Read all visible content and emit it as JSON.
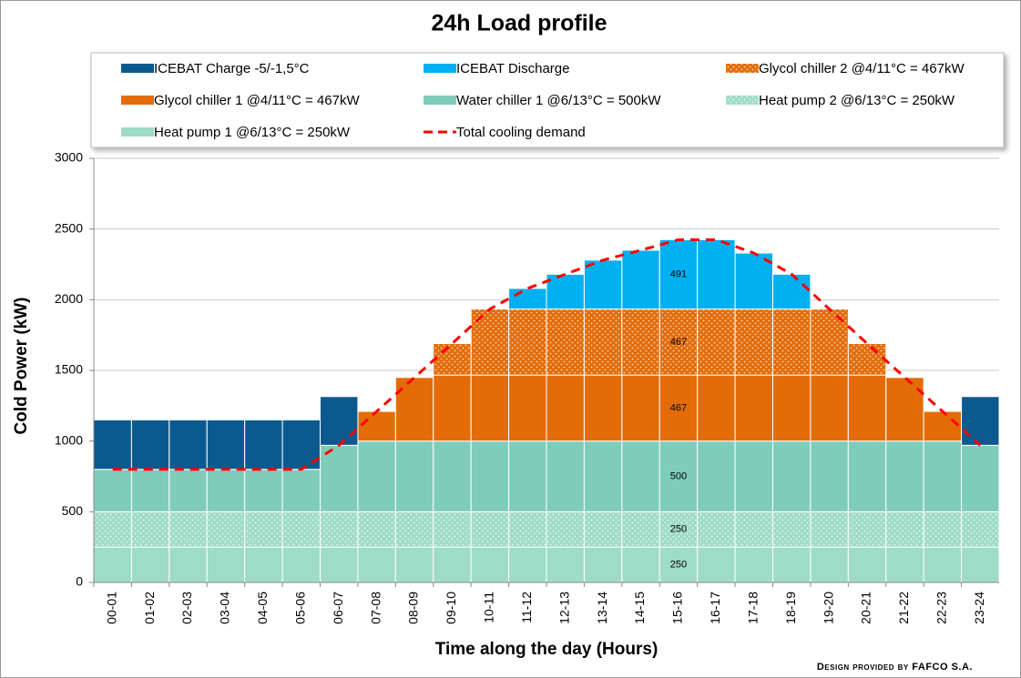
{
  "chart_data": {
    "type": "bar",
    "stacked": true,
    "title": "24h Load profile",
    "x_label": "Time along the day (Hours)",
    "y_label": "Cold Power (kW)",
    "footer": "Design provided by FAFCO S.A.",
    "grid": true,
    "categories": [
      "00-01",
      "01-02",
      "02-03",
      "03-04",
      "04-05",
      "05-06",
      "06-07",
      "07-08",
      "08-09",
      "09-10",
      "10-11",
      "11-12",
      "12-13",
      "13-14",
      "14-15",
      "15-16",
      "16-17",
      "17-18",
      "18-19",
      "19-20",
      "20-21",
      "21-22",
      "22-23",
      "23-24"
    ],
    "ylim": [
      0,
      3000
    ],
    "yticks": [
      0,
      500,
      1000,
      1500,
      2000,
      2500,
      3000
    ],
    "series": [
      {
        "name": "Heat pump 1  @6/13°C = 250kW",
        "color": "#9fdcc8",
        "legend_order": 6,
        "values": [
          250,
          250,
          250,
          250,
          250,
          250,
          250,
          250,
          250,
          250,
          250,
          250,
          250,
          250,
          250,
          250,
          250,
          250,
          250,
          250,
          250,
          250,
          250,
          250
        ],
        "value_labels": [
          null,
          null,
          null,
          null,
          null,
          null,
          null,
          null,
          null,
          null,
          null,
          null,
          null,
          null,
          null,
          "250",
          null,
          null,
          null,
          null,
          null,
          null,
          null,
          null
        ]
      },
      {
        "name": "Heat pump 2  @6/13°C = 250kW",
        "color": "#9fdcc8",
        "pattern": "dots",
        "legend_order": 5,
        "values": [
          250,
          250,
          250,
          250,
          250,
          250,
          250,
          250,
          250,
          250,
          250,
          250,
          250,
          250,
          250,
          250,
          250,
          250,
          250,
          250,
          250,
          250,
          250,
          250
        ],
        "value_labels": [
          null,
          null,
          null,
          null,
          null,
          null,
          null,
          null,
          null,
          null,
          null,
          null,
          null,
          null,
          null,
          "250",
          null,
          null,
          null,
          null,
          null,
          null,
          null,
          null
        ]
      },
      {
        "name": "Water chiller 1  @6/13°C = 500kW",
        "color": "#7fccbb",
        "legend_order": 4,
        "values": [
          300,
          300,
          300,
          300,
          300,
          300,
          470,
          500,
          500,
          500,
          500,
          500,
          500,
          500,
          500,
          500,
          500,
          500,
          500,
          500,
          500,
          500,
          500,
          470
        ],
        "value_labels": [
          null,
          null,
          null,
          null,
          null,
          null,
          null,
          null,
          null,
          null,
          null,
          null,
          null,
          null,
          null,
          "500",
          null,
          null,
          null,
          null,
          null,
          null,
          null,
          null
        ]
      },
      {
        "name": "Glycol chiller 1  @4/11°C = 467kW",
        "color": "#e36c09",
        "legend_order": 3,
        "values": [
          0,
          0,
          0,
          0,
          0,
          0,
          0,
          210,
          450,
          467,
          467,
          467,
          467,
          467,
          467,
          467,
          467,
          467,
          467,
          467,
          467,
          450,
          210,
          0
        ],
        "value_labels": [
          null,
          null,
          null,
          null,
          null,
          null,
          null,
          null,
          null,
          null,
          null,
          null,
          null,
          null,
          null,
          "467",
          null,
          null,
          null,
          null,
          null,
          null,
          null,
          null
        ]
      },
      {
        "name": "Glycol chiller 2  @4/11°C = 467kW",
        "color": "#e36c09",
        "pattern": "dots",
        "legend_order": 2,
        "values": [
          0,
          0,
          0,
          0,
          0,
          0,
          0,
          0,
          0,
          223,
          467,
          467,
          467,
          467,
          467,
          467,
          467,
          467,
          467,
          467,
          223,
          0,
          0,
          0
        ],
        "value_labels": [
          null,
          null,
          null,
          null,
          null,
          null,
          null,
          null,
          null,
          null,
          null,
          null,
          null,
          null,
          null,
          "467",
          null,
          null,
          null,
          null,
          null,
          null,
          null,
          null
        ]
      },
      {
        "name": "ICEBAT Discharge",
        "color": "#00b0f0",
        "legend_order": 1,
        "values": [
          0,
          0,
          0,
          0,
          0,
          0,
          0,
          0,
          0,
          0,
          0,
          146,
          246,
          346,
          416,
          491,
          491,
          396,
          246,
          0,
          0,
          0,
          0,
          0
        ],
        "value_labels": [
          null,
          null,
          null,
          null,
          null,
          null,
          null,
          null,
          null,
          null,
          null,
          null,
          null,
          null,
          null,
          "491",
          null,
          null,
          null,
          null,
          null,
          null,
          null,
          null
        ]
      },
      {
        "name": "ICEBAT Charge -5/-1,5°C",
        "color": "#0b5a8f",
        "legend_order": 0,
        "values": [
          350,
          350,
          350,
          350,
          350,
          350,
          345,
          0,
          0,
          0,
          0,
          0,
          0,
          0,
          0,
          0,
          0,
          0,
          0,
          0,
          0,
          0,
          0,
          345
        ]
      },
      {
        "name": "Total cooling demand",
        "type": "line",
        "color": "#ff0000",
        "dash": true,
        "legend_order": 7,
        "values": [
          800,
          800,
          800,
          800,
          800,
          800,
          970,
          1210,
          1450,
          1690,
          1934,
          2080,
          2180,
          2280,
          2350,
          2425,
          2425,
          2330,
          2180,
          1934,
          1690,
          1450,
          1210,
          970
        ]
      }
    ]
  }
}
